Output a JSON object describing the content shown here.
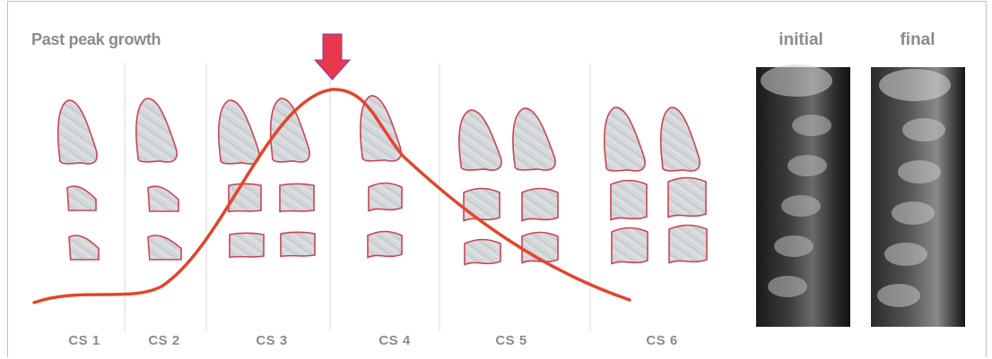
{
  "title": "Past peak growth",
  "stages": [
    {
      "label": "CS 1"
    },
    {
      "label": "CS 2"
    },
    {
      "label": "CS 3"
    },
    {
      "label": "CS 4"
    },
    {
      "label": "CS 5"
    },
    {
      "label": "CS 6"
    }
  ],
  "xrays": [
    {
      "label": "initial"
    },
    {
      "label": "final"
    }
  ],
  "colors": {
    "curve": "#e2462c",
    "arrow": "#e8384b",
    "arrow_outline": "#7d3fb0",
    "vertebra_outline": "#cc4450",
    "vertebra_fill": "#d3d6d9",
    "label": "#8b8b8b",
    "divider": "#e6e6e6"
  },
  "icons": {
    "peak_marker": "down-arrow-icon"
  }
}
